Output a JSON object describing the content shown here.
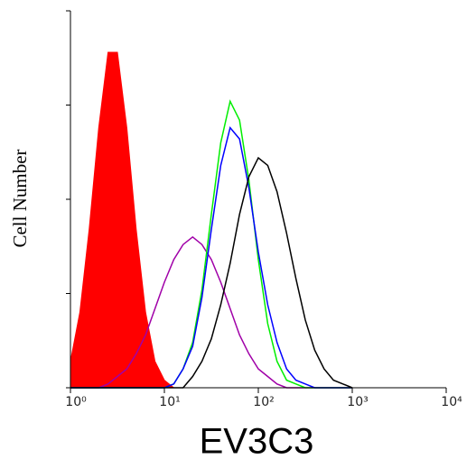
{
  "chart_data": {
    "type": "histogram-overlay",
    "xlabel": "EV3C3",
    "ylabel": "Cell Number",
    "xscale": "log",
    "xlim": [
      1,
      10000
    ],
    "ylim": [
      0,
      100
    ],
    "xticks": [
      {
        "value": 1,
        "label": "10⁰"
      },
      {
        "value": 10,
        "label": "10¹"
      },
      {
        "value": 100,
        "label": "10²"
      },
      {
        "value": 1000,
        "label": "10³"
      },
      {
        "value": 10000,
        "label": "10⁴"
      }
    ],
    "yticks": [
      0,
      25,
      50,
      75,
      100
    ],
    "x": [
      1,
      1.26,
      1.58,
      2,
      2.51,
      3.16,
      3.98,
      5.01,
      6.31,
      7.94,
      10,
      12.6,
      15.8,
      20,
      25.1,
      31.6,
      39.8,
      50.1,
      63.1,
      79.4,
      100,
      126,
      158,
      200,
      251,
      316,
      398,
      501,
      631,
      794,
      1000
    ],
    "series": [
      {
        "color": "#ff0000",
        "filled": true,
        "values": [
          7,
          20,
          42,
          69,
          89,
          89,
          69,
          42,
          20,
          7,
          2,
          0,
          0,
          0,
          0,
          0,
          0,
          0,
          0,
          0,
          0,
          0,
          0,
          0,
          0,
          0,
          0,
          0,
          0,
          0,
          0
        ]
      },
      {
        "color": "#a000a8",
        "filled": false,
        "values": [
          0,
          0,
          0,
          0,
          1,
          3,
          5,
          9,
          14,
          21,
          28,
          34,
          38,
          40,
          38,
          34,
          28,
          21,
          14,
          9,
          5,
          3,
          1,
          0,
          0,
          0,
          0,
          0,
          0,
          0,
          0
        ]
      },
      {
        "color": "#00ee00",
        "filled": false,
        "values": [
          0,
          0,
          0,
          0,
          0,
          0,
          0,
          0,
          0,
          0,
          0,
          1,
          5,
          12,
          26,
          46,
          65,
          76,
          71,
          55,
          34,
          17,
          7,
          2,
          1,
          0,
          0,
          0,
          0,
          0,
          0
        ]
      },
      {
        "color": "#0000ff",
        "filled": false,
        "values": [
          0,
          0,
          0,
          0,
          0,
          0,
          0,
          0,
          0,
          0,
          0,
          1,
          5,
          11,
          24,
          42,
          59,
          69,
          66,
          53,
          36,
          22,
          12,
          5,
          2,
          1,
          0,
          0,
          0,
          0,
          0
        ]
      },
      {
        "color": "#000000",
        "filled": false,
        "values": [
          0,
          0,
          0,
          0,
          0,
          0,
          0,
          0,
          0,
          0,
          0,
          0,
          0,
          3,
          7,
          13,
          22,
          33,
          46,
          56,
          61,
          59,
          52,
          41,
          29,
          18,
          10,
          5,
          2,
          1,
          0
        ]
      }
    ]
  }
}
